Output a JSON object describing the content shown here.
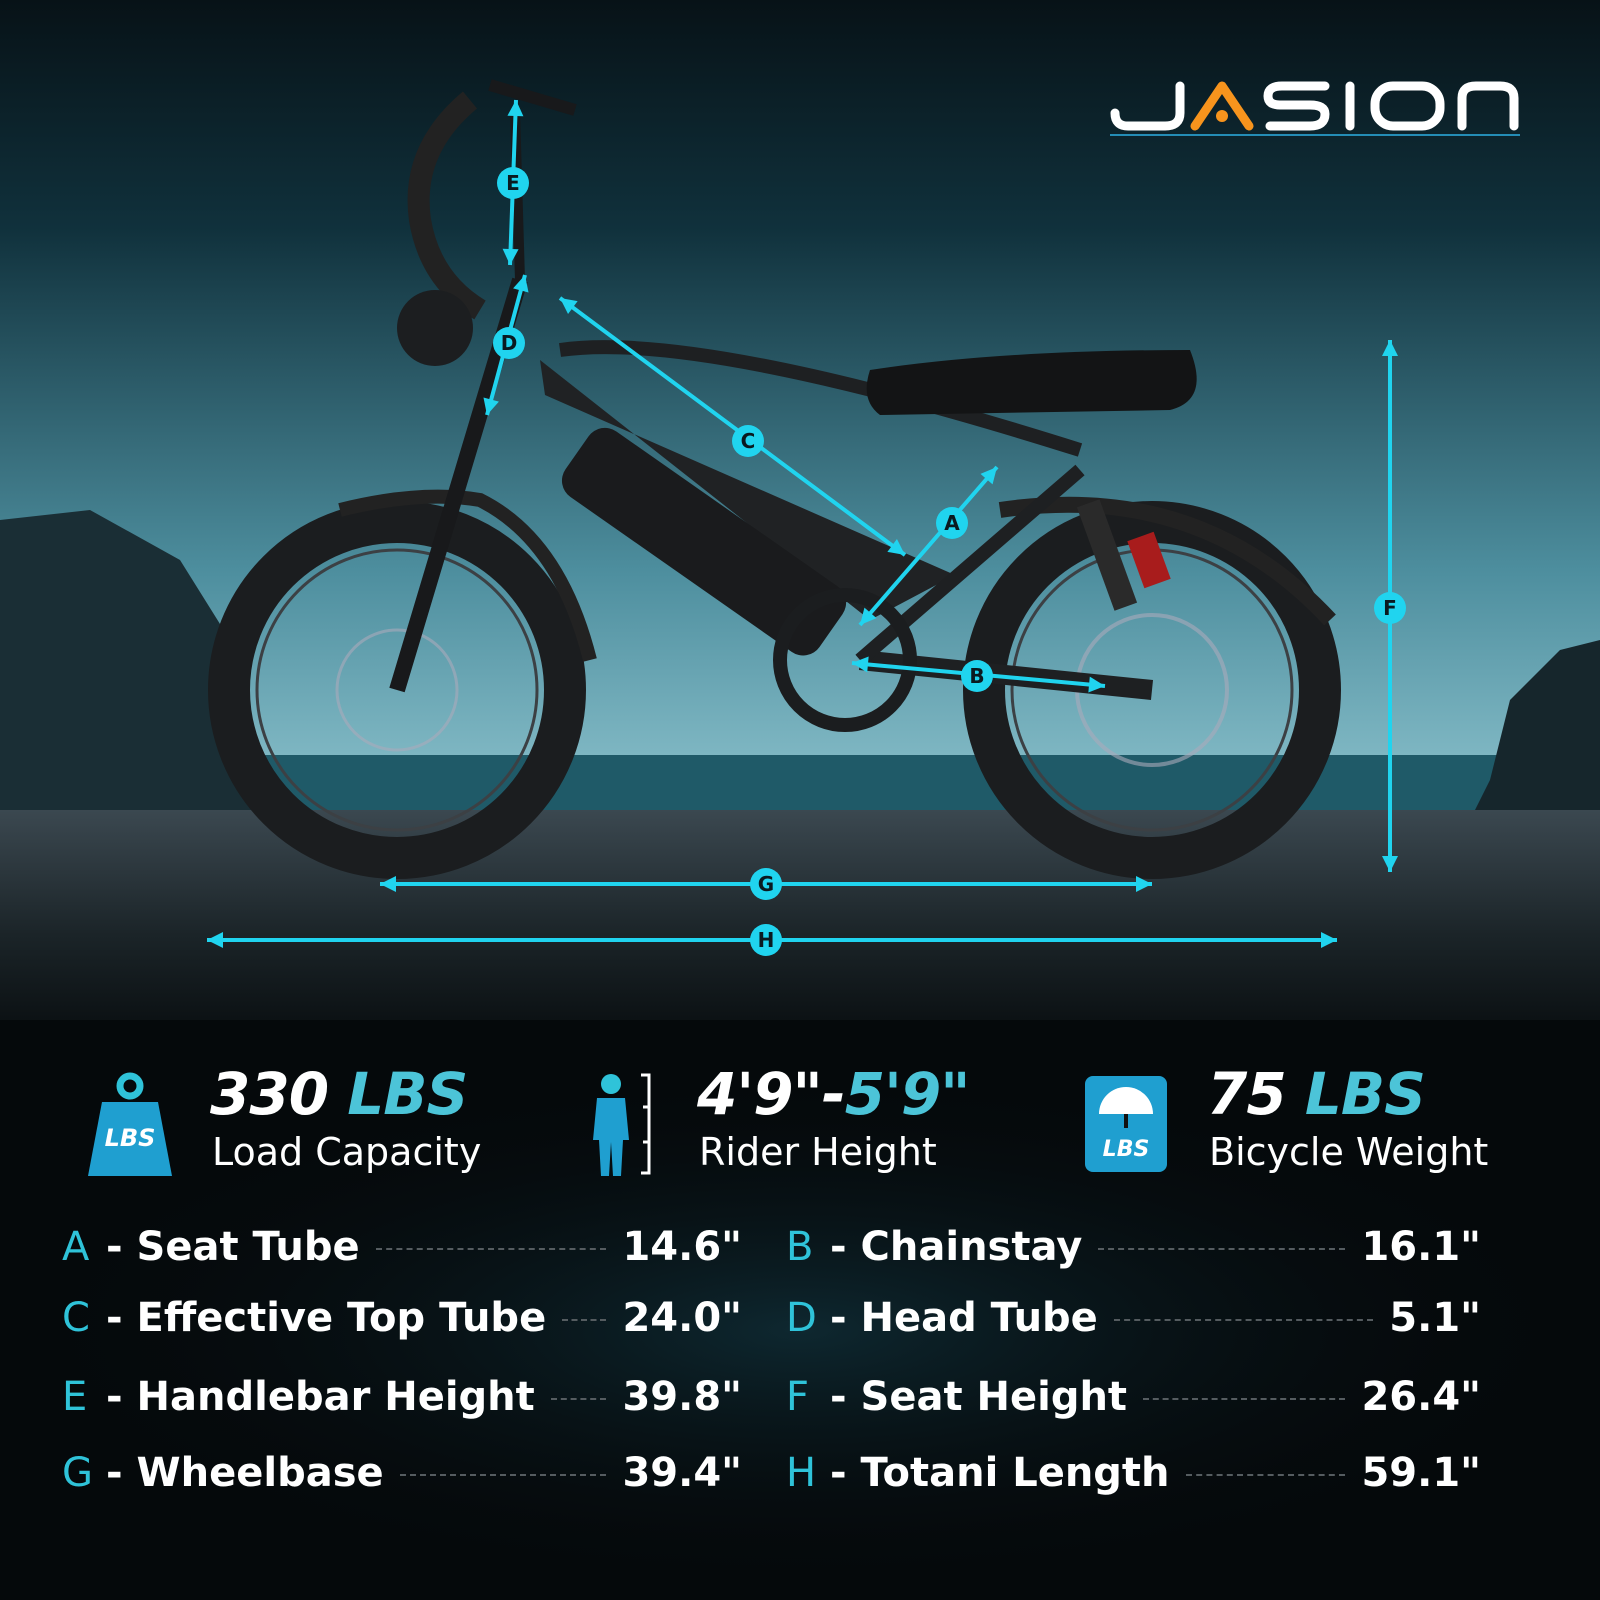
{
  "brand": {
    "logo_text": "JASION",
    "accent": "#f7941d"
  },
  "colors": {
    "dimension_line": "#20d4ef",
    "highlight": "#4cc4d8"
  },
  "dimension_labels": [
    "A",
    "B",
    "C",
    "D",
    "E",
    "F",
    "G",
    "H"
  ],
  "stats": [
    {
      "icon": "weight-lbs-icon",
      "icon_text": "LBS",
      "value": "330",
      "unit": "LBS",
      "label": "Load Capacity"
    },
    {
      "icon": "rider-height-icon",
      "value": "4'9\"",
      "separator": "-",
      "value2": "5'9\"",
      "label": "Rider Height"
    },
    {
      "icon": "scale-lbs-icon",
      "icon_text": "LBS",
      "value": "75",
      "unit": "LBS",
      "label": "Bicycle Weight"
    }
  ],
  "specs": [
    {
      "letter": "A",
      "label": "- Seat Tube",
      "value": "14.6\""
    },
    {
      "letter": "B",
      "label": "- Chainstay",
      "value": "16.1\""
    },
    {
      "letter": "C",
      "label": "- Effective Top Tube",
      "value": "24.0\""
    },
    {
      "letter": "D",
      "label": "- Head Tube",
      "value": "5.1\""
    },
    {
      "letter": "E",
      "label": "- Handlebar Height",
      "value": "39.8\""
    },
    {
      "letter": "F",
      "label": "- Seat Height",
      "value": "26.4\""
    },
    {
      "letter": "G",
      "label": "- Wheelbase",
      "value": "39.4\""
    },
    {
      "letter": "H",
      "label": "- Totani Length",
      "value": "59.1\""
    }
  ]
}
